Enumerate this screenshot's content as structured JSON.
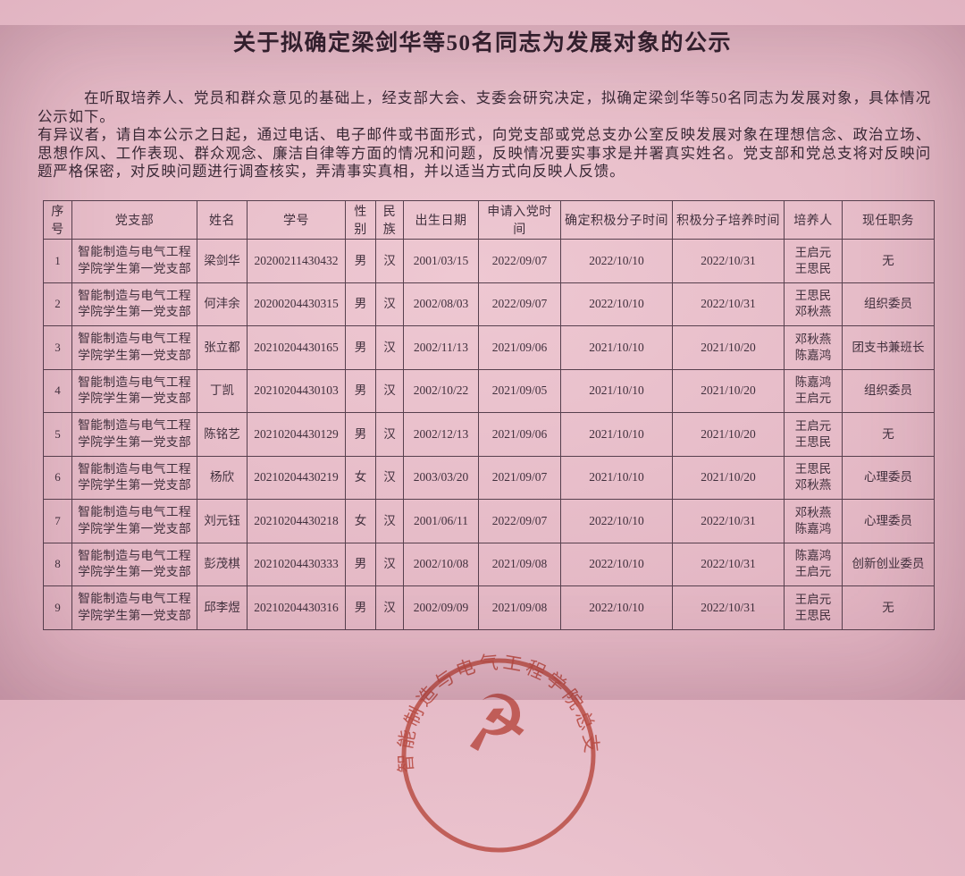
{
  "document": {
    "title": "关于拟确定梁剑华等50名同志为发展对象的公示",
    "paragraph1": "在听取培养人、党员和群众意见的基础上，经支部大会、支委会研究决定，拟确定梁剑华等50名同志为发展对象，具体情况公示如下。",
    "paragraph2": "有异议者，请自本公示之日起，通过电话、电子邮件或书面形式，向党支部或党总支办公室反映发展对象在理想信念、政治立场、思想作风、工作表现、群众观念、廉洁自律等方面的情况和问题，反映情况要实事求是并署真实姓名。党支部和党总支将对反映问题严格保密，对反映问题进行调查核实，弄清事实真相，并以适当方式向反映人反馈。"
  },
  "table": {
    "headers": [
      "序号",
      "党支部",
      "姓名",
      "学号",
      "性别",
      "民族",
      "出生日期",
      "申请入党时间",
      "确定积极分子时间",
      "积极分子培养时间",
      "培养人",
      "现任职务"
    ],
    "rows": [
      [
        "1",
        "智能制造与电气工程学院学生第一党支部",
        "梁剑华",
        "20200211430432",
        "男",
        "汉",
        "2001/03/15",
        "2022/09/07",
        "2022/10/10",
        "2022/10/31",
        "王启元\n王思民",
        "无"
      ],
      [
        "2",
        "智能制造与电气工程学院学生第一党支部",
        "何沣余",
        "20200204430315",
        "男",
        "汉",
        "2002/08/03",
        "2022/09/07",
        "2022/10/10",
        "2022/10/31",
        "王思民\n邓秋燕",
        "组织委员"
      ],
      [
        "3",
        "智能制造与电气工程学院学生第一党支部",
        "张立都",
        "20210204430165",
        "男",
        "汉",
        "2002/11/13",
        "2021/09/06",
        "2021/10/10",
        "2021/10/20",
        "邓秋燕\n陈嘉鸿",
        "团支书兼班长"
      ],
      [
        "4",
        "智能制造与电气工程学院学生第一党支部",
        "丁凯",
        "20210204430103",
        "男",
        "汉",
        "2002/10/22",
        "2021/09/05",
        "2021/10/10",
        "2021/10/20",
        "陈嘉鸿\n王启元",
        "组织委员"
      ],
      [
        "5",
        "智能制造与电气工程学院学生第一党支部",
        "陈铭艺",
        "20210204430129",
        "男",
        "汉",
        "2002/12/13",
        "2021/09/06",
        "2021/10/10",
        "2021/10/20",
        "王启元\n王思民",
        "无"
      ],
      [
        "6",
        "智能制造与电气工程学院学生第一党支部",
        "杨欣",
        "20210204430219",
        "女",
        "汉",
        "2003/03/20",
        "2021/09/07",
        "2021/10/10",
        "2021/10/20",
        "王思民\n邓秋燕",
        "心理委员"
      ],
      [
        "7",
        "智能制造与电气工程学院学生第一党支部",
        "刘元钰",
        "20210204430218",
        "女",
        "汉",
        "2001/06/11",
        "2022/09/07",
        "2022/10/10",
        "2022/10/31",
        "邓秋燕\n陈嘉鸿",
        "心理委员"
      ],
      [
        "8",
        "智能制造与电气工程学院学生第一党支部",
        "彭茂棋",
        "20210204430333",
        "男",
        "汉",
        "2002/10/08",
        "2021/09/08",
        "2022/10/10",
        "2022/10/31",
        "陈嘉鸿\n王启元",
        "创新创业委员"
      ],
      [
        "9",
        "智能制造与电气工程学院学生第一党支部",
        "邱李煜",
        "20210204430316",
        "男",
        "汉",
        "2002/09/09",
        "2021/09/08",
        "2022/10/10",
        "2022/10/31",
        "王启元\n王思民",
        "无"
      ]
    ]
  },
  "seal": {
    "arc_text": "智能制造与电气工程学院总支",
    "emblem": "hammer-sickle-icon",
    "emblem_glyph": "☭",
    "color": "#b5443a"
  },
  "colors": {
    "paper_pink": "#e4b8c5",
    "ink": "#3a2936",
    "table_border": "#57404e",
    "seal_red": "#b5443a"
  }
}
